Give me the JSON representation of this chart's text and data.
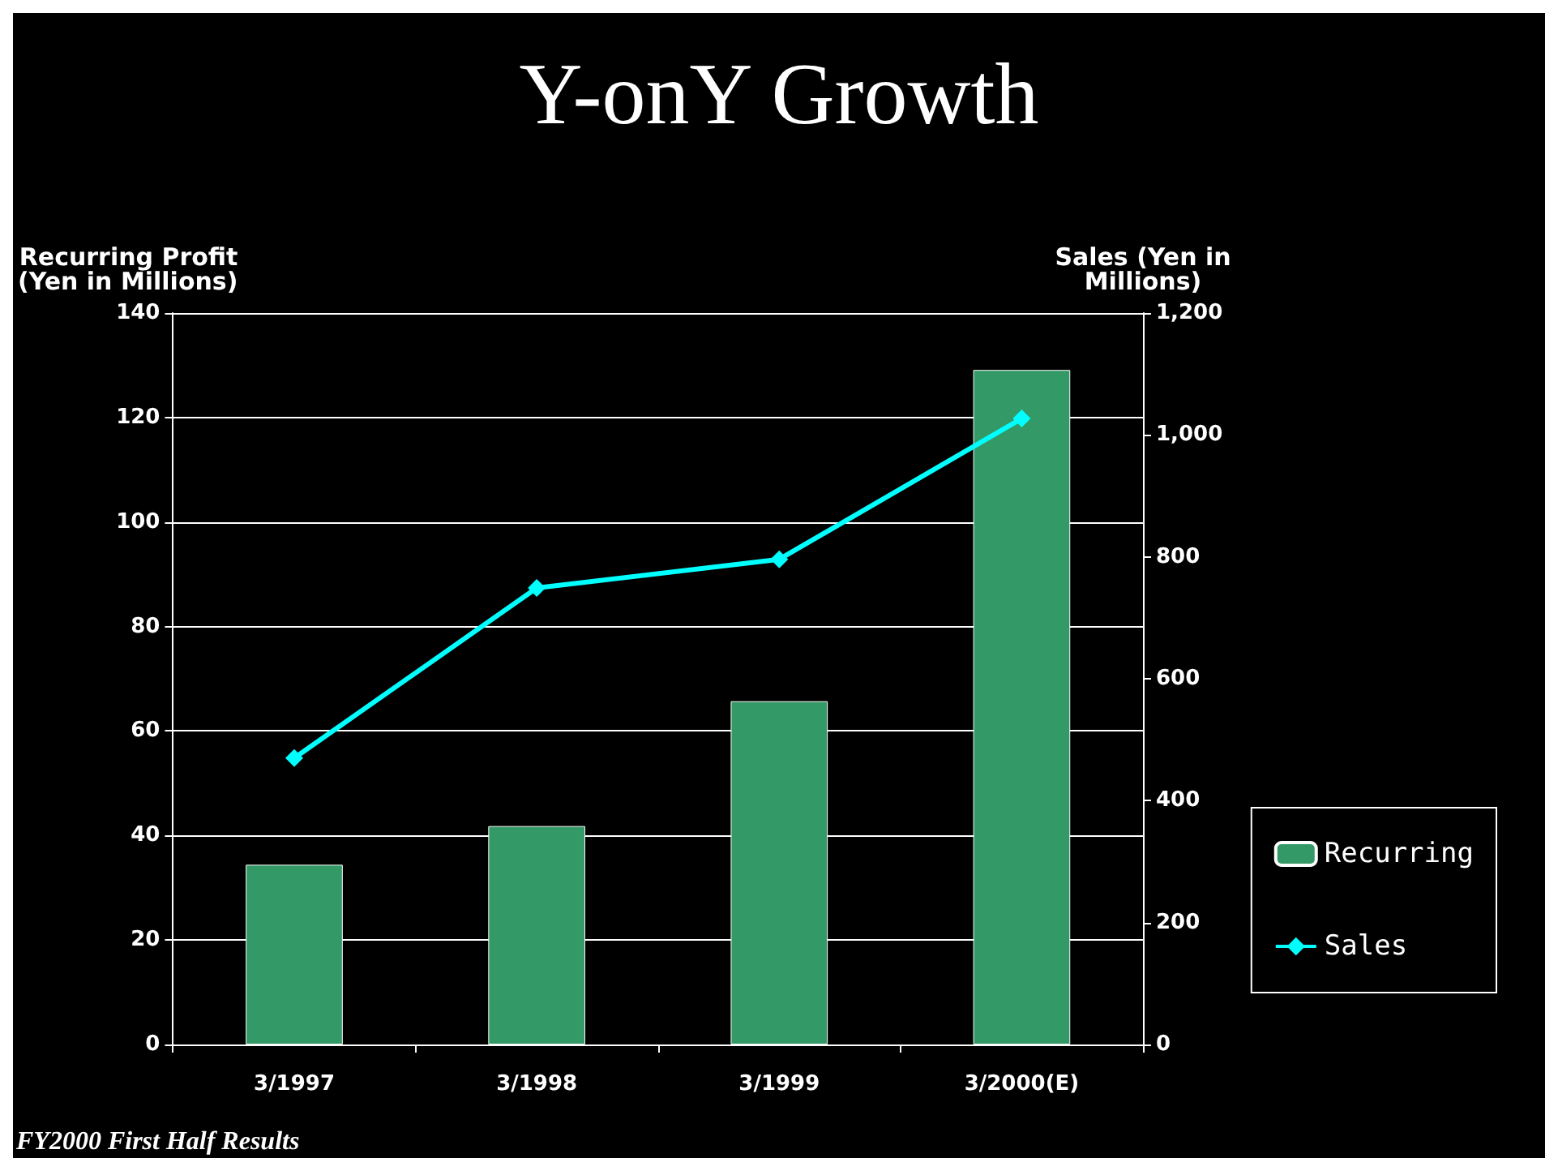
{
  "chart_data": {
    "type": "bar",
    "title": "Y-onY Growth",
    "ylabel": "Recurring Profit\n(Yen in Millions)",
    "y2label": "Sales (Yen in\nMillions)",
    "categories": [
      "3/1997",
      "3/1998",
      "3/1999",
      "3/2000(E)"
    ],
    "series": [
      {
        "name": "Recurring",
        "color": "#339966",
        "values": [
          34.4,
          41.8,
          65.7,
          129.1
        ]
      },
      {
        "name": "Sales",
        "type": "line",
        "axis": "y2",
        "color": "#00ffff",
        "values": [
          470,
          749,
          796,
          1027
        ]
      }
    ],
    "ylim": [
      0,
      140
    ],
    "yticks": [
      0,
      20,
      40,
      60,
      80,
      100,
      120,
      140
    ],
    "y2lim": [
      0,
      1200
    ],
    "y2ticks": [
      0,
      200,
      400,
      600,
      800,
      {
        "value": 1000,
        "label": "1,000"
      },
      {
        "value": 1200,
        "label": "1,200"
      }
    ],
    "grid": "y",
    "legend": "right",
    "marker": "diamond",
    "annotations": [
      "FY2000 First Half Results"
    ]
  }
}
